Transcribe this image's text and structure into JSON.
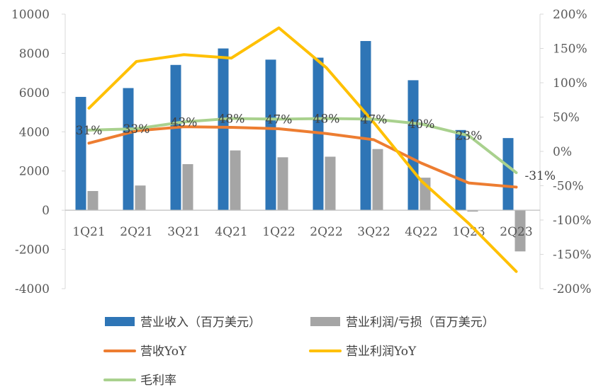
{
  "chart_data": {
    "type": "bar",
    "title": "",
    "categories": [
      "1Q21",
      "2Q21",
      "3Q21",
      "4Q21",
      "1Q22",
      "2Q22",
      "3Q22",
      "4Q22",
      "1Q23",
      "2Q23"
    ],
    "left_axis": {
      "min": -4000,
      "max": 10000,
      "step": 2000,
      "ticks": [
        "-4000",
        "-2000",
        "0",
        "2000",
        "4000",
        "6000",
        "8000",
        "10000"
      ]
    },
    "right_axis": {
      "min": -200,
      "max": 200,
      "step": 50,
      "ticks": [
        "-200%",
        "-150%",
        "-100%",
        "-50%",
        "0%",
        "50%",
        "100%",
        "150%",
        "200%"
      ]
    },
    "series": [
      {
        "name": "营业收入（百万美元）",
        "kind": "bar",
        "axis": "left",
        "color": "#2E75B6",
        "values": [
          5780,
          6230,
          7410,
          8250,
          7680,
          7780,
          8630,
          6630,
          4090,
          3680
        ]
      },
      {
        "name": "营业利润/亏损（百万美元）",
        "kind": "bar",
        "axis": "left",
        "color": "#A5A5A5",
        "values": [
          980,
          1260,
          2350,
          3050,
          2700,
          2730,
          3120,
          1660,
          -70,
          -2100
        ]
      },
      {
        "name": "营收YoY",
        "kind": "line",
        "axis": "right",
        "color": "#ED7D31",
        "values": [
          12,
          30,
          36,
          35,
          33,
          26,
          17,
          -17,
          -46,
          -52
        ]
      },
      {
        "name": "营业利润YoY",
        "kind": "line",
        "axis": "right",
        "color": "#FFC000",
        "values": [
          63,
          131,
          141,
          136,
          180,
          122,
          42,
          -43,
          -105,
          -175
        ]
      },
      {
        "name": "毛利率",
        "kind": "line",
        "axis": "right",
        "color": "#A9D18E",
        "values": [
          31,
          33,
          43,
          48,
          47,
          48,
          47,
          40,
          23,
          -31
        ],
        "labels": [
          "31%",
          "33%",
          "43%",
          "48%",
          "47%",
          "48%",
          "47%",
          "40%",
          "23%",
          "-31%"
        ]
      }
    ],
    "legend_position": "bottom",
    "grid": false
  }
}
